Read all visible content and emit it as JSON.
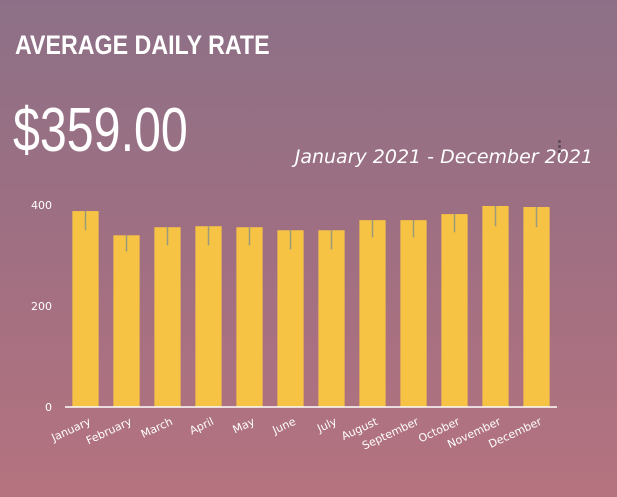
{
  "header": {
    "title": "AVERAGE DAILY RATE",
    "big_value": "$359.00",
    "date_range": "January 2021 - December 2021"
  },
  "colors": {
    "bar": "#f6c344",
    "error_bar": "#9a9a7a",
    "axis": "#ffffff"
  },
  "icons": {
    "menu": "more-vertical-icon"
  },
  "chart_data": {
    "type": "bar",
    "title": "",
    "xlabel": "",
    "ylabel": "",
    "ylim": [
      0,
      400
    ],
    "yticks": [
      0,
      200,
      400
    ],
    "grid": false,
    "categories": [
      "January",
      "February",
      "March",
      "April",
      "May",
      "June",
      "July",
      "August",
      "September",
      "October",
      "November",
      "December"
    ],
    "values": [
      388,
      340,
      356,
      358,
      356,
      350,
      350,
      370,
      370,
      382,
      398,
      396
    ],
    "error_low": [
      350,
      308,
      320,
      320,
      320,
      312,
      312,
      336,
      336,
      346,
      358,
      356
    ],
    "error_high": [
      388,
      340,
      356,
      358,
      356,
      350,
      350,
      370,
      370,
      382,
      398,
      396
    ]
  }
}
